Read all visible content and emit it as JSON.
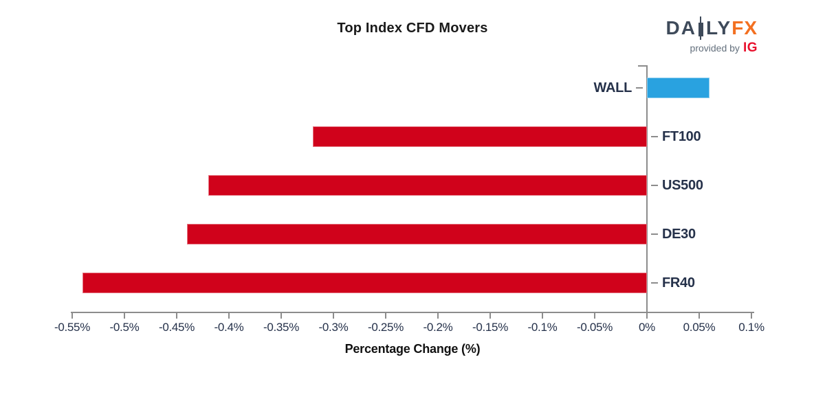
{
  "title": "Top Index CFD Movers",
  "logo": {
    "brand_left": "DA",
    "brand_right": "LY",
    "brand_fx": "FX",
    "candlestick_icon": "candlestick-icon",
    "provided_by": "provided by",
    "partner": "IG"
  },
  "chart_data": {
    "type": "bar",
    "orientation": "horizontal",
    "title": "Top Index CFD Movers",
    "xlabel": "Percentage Change (%)",
    "categories": [
      "WALL",
      "FT100",
      "US500",
      "DE30",
      "FR40"
    ],
    "values": [
      0.06,
      -0.32,
      -0.42,
      -0.44,
      -0.54
    ],
    "xlim": [
      -0.55,
      0.1
    ],
    "xticks": [
      -0.55,
      -0.5,
      -0.45,
      -0.4,
      -0.35,
      -0.3,
      -0.25,
      -0.2,
      -0.15,
      -0.1,
      -0.05,
      0,
      0.05,
      0.1
    ],
    "xtick_labels": [
      "-0.55%",
      "-0.5%",
      "-0.45%",
      "-0.4%",
      "-0.35%",
      "-0.3%",
      "-0.25%",
      "-0.2%",
      "-0.15%",
      "-0.1%",
      "-0.05%",
      "0%",
      "0.05%",
      "0.1%"
    ],
    "grid": false,
    "legend": null,
    "colors": {
      "positive_bar": "#29A2E0",
      "negative_bar": "#D0021B",
      "axis": "#8C8C8C",
      "category_label": "#25314A",
      "tick_label": "#25314A",
      "title": "#1A1A1A"
    }
  }
}
